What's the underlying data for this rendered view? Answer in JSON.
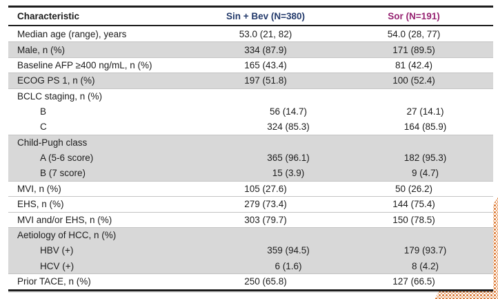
{
  "slide": {
    "background": "#ffffff",
    "decoration": {
      "name": "halftone-corner-dots",
      "color_primary": "#d9752f",
      "color_secondary": "#eda26b",
      "position": "bottom-right"
    }
  },
  "table": {
    "shaded_row_color": "#d8d8d8",
    "border_color": "#1c1c1c",
    "columns": [
      {
        "label": "Characteristic",
        "color": "#1c1c1c",
        "align": "left"
      },
      {
        "label": "Sin + Bev (N=380)",
        "color": "#233a6b",
        "align": "center"
      },
      {
        "label": "Sor (N=191)",
        "color": "#962271",
        "align": "center"
      }
    ],
    "rows": [
      {
        "label": "Median age (range), years",
        "sin_bev": "53.0 (21, 82)",
        "sor": "54.0 (28, 77)",
        "shaded": false,
        "indent": false
      },
      {
        "label": "Male, n (%)",
        "sin_bev": "334 (87.9)",
        "sor": "171 (89.5)",
        "shaded": true,
        "indent": false
      },
      {
        "label": "Baseline AFP ≥400 ng/mL, n (%)",
        "sin_bev": "165 (43.4)",
        "sor": "81 (42.4)",
        "shaded": false,
        "indent": false
      },
      {
        "label": "ECOG PS 1, n (%)",
        "sin_bev": "197 (51.8)",
        "sor": "100 (52.4)",
        "shaded": true,
        "indent": false
      },
      {
        "label": "BCLC staging, n (%)",
        "sin_bev": "",
        "sor": "",
        "shaded": false,
        "indent": false
      },
      {
        "label": "B",
        "sin_bev": "56 (14.7)",
        "sor": "27 (14.1)",
        "shaded": false,
        "indent": true
      },
      {
        "label": "C",
        "sin_bev": "324 (85.3)",
        "sor": "164 (85.9)",
        "shaded": false,
        "indent": true
      },
      {
        "label": "Child-Pugh class",
        "sin_bev": "",
        "sor": "",
        "shaded": true,
        "indent": false
      },
      {
        "label": "A  (5-6 score)",
        "sin_bev": "365 (96.1)",
        "sor": "182 (95.3)",
        "shaded": true,
        "indent": true
      },
      {
        "label": "B  (7 score)",
        "sin_bev": "15 (3.9)",
        "sor": "9 (4.7)",
        "shaded": true,
        "indent": true
      },
      {
        "label": "MVI, n (%)",
        "sin_bev": "105 (27.6)",
        "sor": "50 (26.2)",
        "shaded": false,
        "indent": false
      },
      {
        "label": "EHS, n (%)",
        "sin_bev": "279 (73.4)",
        "sor": "144 (75.4)",
        "shaded": false,
        "indent": false
      },
      {
        "label": "MVI and/or EHS, n (%)",
        "sin_bev": "303 (79.7)",
        "sor": "150 (78.5)",
        "shaded": false,
        "indent": false
      },
      {
        "label": "Aetiology of HCC, n (%)",
        "sin_bev": "",
        "sor": "",
        "shaded": true,
        "indent": false
      },
      {
        "label": "HBV (+)",
        "sin_bev": "359 (94.5)",
        "sor": "179 (93.7)",
        "shaded": true,
        "indent": true
      },
      {
        "label": "HCV (+)",
        "sin_bev": "6 (1.6)",
        "sor": "8 (4.2)",
        "shaded": true,
        "indent": true
      },
      {
        "label": "Prior TACE, n (%)",
        "sin_bev": "250 (65.8)",
        "sor": "127 (66.5)",
        "shaded": false,
        "indent": false
      }
    ]
  }
}
